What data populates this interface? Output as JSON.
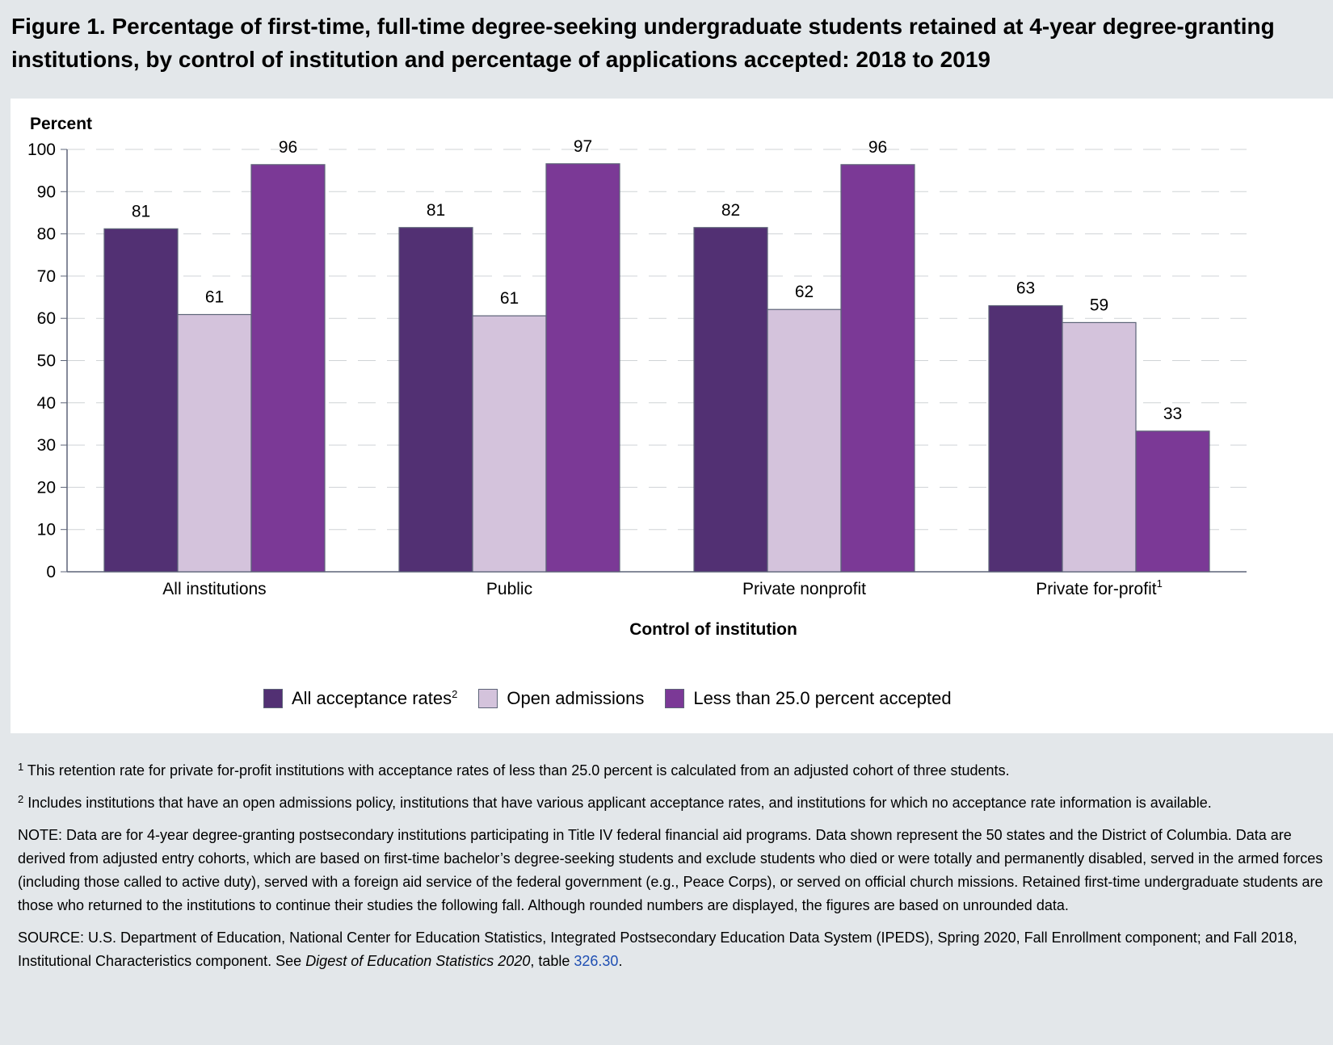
{
  "figure": {
    "title": "Figure 1. Percentage of first-time, full-time degree-seeking undergraduate students retained at 4-year degree-granting institutions, by control of institution and percentage of applications accepted: 2018 to 2019"
  },
  "chart_data": {
    "type": "bar",
    "title": "",
    "ylabel": "Percent",
    "xlabel": "Control of institution",
    "ylim": [
      0,
      100
    ],
    "yticks": [
      0,
      10,
      20,
      30,
      40,
      50,
      60,
      70,
      80,
      90,
      100
    ],
    "grid": true,
    "legend_position": "bottom",
    "categories": [
      "All institutions",
      "Public",
      "Private nonprofit",
      "Private for-profit"
    ],
    "category_superscripts": [
      "",
      "",
      "",
      "1"
    ],
    "series": [
      {
        "name": "All acceptance rates",
        "superscript": "2",
        "color": "#523073",
        "values": [
          81.2,
          81.5,
          81.5,
          63.0
        ]
      },
      {
        "name": "Open admissions",
        "superscript": "",
        "color": "#d4c3dc",
        "values": [
          60.9,
          60.6,
          62.1,
          59.0
        ]
      },
      {
        "name": "Less than 25.0 percent accepted",
        "superscript": "",
        "color": "#7b3996",
        "values": [
          96.4,
          96.6,
          96.4,
          33.3
        ]
      }
    ],
    "value_labels": [
      [
        "81",
        "81",
        "82",
        "63"
      ],
      [
        "61",
        "61",
        "62",
        "59"
      ],
      [
        "96",
        "97",
        "96",
        "33"
      ]
    ]
  },
  "notes": {
    "footnote1_mark": "1",
    "footnote1": "This retention rate for private for-profit institutions with acceptance rates of less than 25.0 percent is calculated from an adjusted cohort of three students.",
    "footnote2_mark": "2",
    "footnote2": "Includes institutions that have an open admissions policy, institutions that have various applicant acceptance rates, and institutions for which no acceptance rate information is available.",
    "note": "NOTE: Data are for 4-year degree-granting postsecondary institutions participating in Title IV federal financial aid programs. Data shown represent the 50 states and the District of Columbia. Data are derived from adjusted entry cohorts, which are based on first-time bachelor’s degree-seeking students and exclude students who died or were totally and permanently disabled, served in the armed forces (including those called to active duty), served with a foreign aid service of the federal government (e.g., Peace Corps), or served on official church missions. Retained first-time undergraduate students are those who returned to the institutions to continue their studies the following fall. Although rounded numbers are displayed, the figures are based on unrounded data.",
    "source_prefix": "SOURCE: U.S. Department of Education, National Center for Education Statistics, Integrated Postsecondary Education Data System (IPEDS), Spring 2020, Fall Enrollment component; and Fall 2018, Institutional Characteristics component. See ",
    "source_italic": "Digest of Education Statistics 2020",
    "source_mid": ", table ",
    "source_link": "326.30",
    "source_end": "."
  }
}
